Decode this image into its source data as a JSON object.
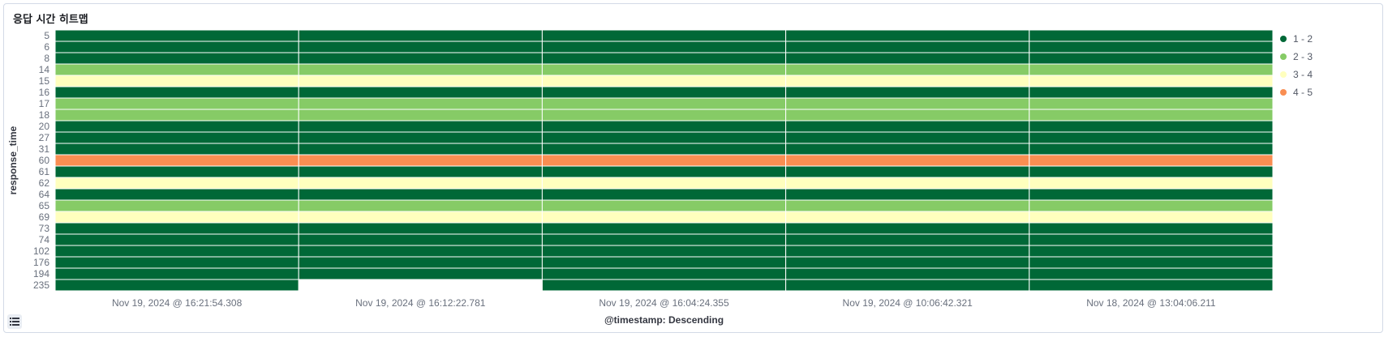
{
  "panel": {
    "title": "응답 시간 히트맵"
  },
  "legend_toggle_icon": "list-icon",
  "chart_data": {
    "type": "heatmap",
    "title": "응답 시간 히트맵",
    "xlabel": "@timestamp: Descending",
    "ylabel": "response_time",
    "x": [
      "Nov 19, 2024 @ 16:21:54.308",
      "Nov 19, 2024 @ 16:12:22.781",
      "Nov 19, 2024 @ 16:04:24.355",
      "Nov 19, 2024 @ 10:06:42.321",
      "Nov 18, 2024 @ 13:04:06.211"
    ],
    "y": [
      "5",
      "6",
      "8",
      "14",
      "15",
      "16",
      "17",
      "18",
      "20",
      "27",
      "31",
      "60",
      "61",
      "62",
      "64",
      "65",
      "69",
      "73",
      "74",
      "102",
      "176",
      "194",
      "235"
    ],
    "row_values": [
      1,
      1,
      1,
      2,
      3,
      1,
      2,
      2,
      1,
      1,
      1,
      4,
      1,
      3,
      1,
      2,
      3,
      1,
      1,
      1,
      1,
      1,
      1
    ],
    "missing_cells": [
      {
        "x": "Nov 19, 2024 @ 16:12:22.781",
        "y": "235"
      }
    ],
    "legend": [
      {
        "label": "1 - 2",
        "color": "#006837"
      },
      {
        "label": "2 - 3",
        "color": "#86cb66"
      },
      {
        "label": "3 - 4",
        "color": "#ffffbe"
      },
      {
        "label": "4 - 5",
        "color": "#f98e52"
      }
    ],
    "legend_position": "right",
    "grid": false
  }
}
